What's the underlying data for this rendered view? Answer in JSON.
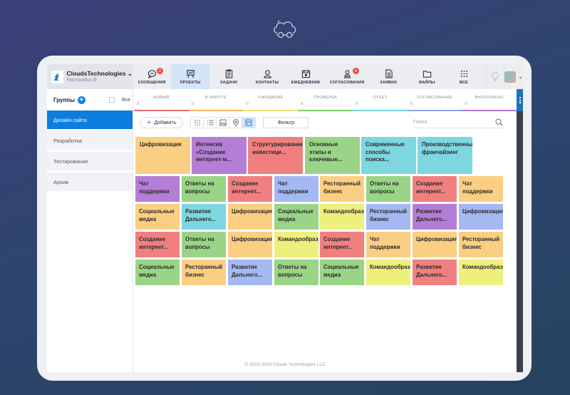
{
  "header": {
    "brand": {
      "name": "CloudsTechnologies",
      "subtitle": "Настройка"
    },
    "nav": [
      {
        "id": "messages",
        "label": "СООБЩЕНИЯ",
        "badge": "2",
        "icon": "chat-icon"
      },
      {
        "id": "projects",
        "label": "ПРОЕКТЫ",
        "active": true,
        "icon": "presentation-board-icon"
      },
      {
        "id": "tasks",
        "label": "ЗАДАЧИ",
        "icon": "clipboard-icon"
      },
      {
        "id": "contacts",
        "label": "КОНТАКТЫ",
        "icon": "user-icon"
      },
      {
        "id": "planner",
        "label": "ЕЖЕДНЕВНИК",
        "icon": "calendar-icon"
      },
      {
        "id": "approvals",
        "label": "СОГЛАСОВАНИЯ",
        "badge": "6",
        "icon": "users-icon"
      },
      {
        "id": "requests",
        "label": "ЗАЯВКИ",
        "icon": "document-icon"
      },
      {
        "id": "files",
        "label": "ФАЙЛЫ",
        "icon": "folder-icon"
      },
      {
        "id": "all",
        "label": "ВСЕ",
        "icon": "grid-icon"
      }
    ]
  },
  "sidebar": {
    "title": "Группы",
    "all_label": "Все",
    "items": [
      {
        "label": "Дизайн сайта",
        "active": true
      },
      {
        "label": "Разработка"
      },
      {
        "label": "Тестирование"
      },
      {
        "label": "Архив"
      }
    ]
  },
  "statuses": [
    {
      "name": "НОВЫЙ",
      "count": "3",
      "color": "#ea6f6f"
    },
    {
      "name": "В РАБОТЕ",
      "count": "0",
      "color": "#f2b75f"
    },
    {
      "name": "ОЖИДАНИЕ",
      "count": "0",
      "color": "#ede87a"
    },
    {
      "name": "ПРОВЕРКА",
      "count": "0",
      "color": "#7fd06e"
    },
    {
      "name": "ОТЧЕТ",
      "count": "0",
      "color": "#72d6e0"
    },
    {
      "name": "СОГЛАСОВАНИЕ",
      "count": "0",
      "color": "#8fa9ea"
    },
    {
      "name": "ВЫПОЛНЕНО",
      "count": "0",
      "color": "#b57ad8"
    }
  ],
  "toolbar": {
    "add_label": "Добавить",
    "filter_label": "Фильтр",
    "search_placeholder": "Поиск"
  },
  "colors": {
    "orange": "#fbcf83",
    "purple": "#b57ed6",
    "red": "#f08080",
    "green": "#9ad487",
    "cyan": "#7ed6e0",
    "blue": "#a4b9f1",
    "yellow": "#eef07e"
  },
  "big_cards": [
    {
      "title": "Цифровизация",
      "color": "orange"
    },
    {
      "title": "Интенсив «Создание интернет-м...",
      "color": "purple"
    },
    {
      "title": "Структурирование инвестици...",
      "color": "red"
    },
    {
      "title": "Основные этапы и ключевые...",
      "color": "green"
    },
    {
      "title": "Современные способы поиска...",
      "color": "cyan"
    },
    {
      "title": "Производственный франчайзинг",
      "color": "cyan"
    }
  ],
  "card_grid": [
    [
      {
        "title": "Чат поддержки",
        "color": "purple"
      },
      {
        "title": "Ответы на вопросы",
        "color": "green"
      },
      {
        "title": "Создание интернет...",
        "color": "red"
      },
      {
        "title": "Чат поддержки",
        "color": "blue"
      },
      {
        "title": "Ресторанный бизнес",
        "color": "orange"
      },
      {
        "title": "Ответы на вопросы",
        "color": "green"
      },
      {
        "title": "Создание интернет...",
        "color": "red"
      },
      {
        "title": "Чат поддержки",
        "color": "orange"
      }
    ],
    [
      {
        "title": "Социальные медиа",
        "color": "orange"
      },
      {
        "title": "Развитие Дальнего...",
        "color": "cyan"
      },
      {
        "title": "Цифровизация",
        "color": "orange"
      },
      {
        "title": "Социальные медиа",
        "color": "green"
      },
      {
        "title": "Командообразование",
        "color": "yellow"
      },
      {
        "title": "Ресторанный бизнес",
        "color": "blue"
      },
      {
        "title": "Развитие Дальнего...",
        "color": "purple"
      },
      {
        "title": "Цифровизация",
        "color": "blue"
      }
    ],
    [
      {
        "title": "Создание интернет...",
        "color": "red"
      },
      {
        "title": "Ответы на вопросы",
        "color": "green"
      },
      {
        "title": "Цифровизация",
        "color": "orange"
      },
      {
        "title": "Командообразование",
        "color": "yellow"
      },
      {
        "title": "Создание интернет...",
        "color": "red"
      },
      {
        "title": "Чат поддержки",
        "color": "orange"
      },
      {
        "title": "Цифровизация",
        "color": "orange"
      },
      {
        "title": "Ресторанный бизнес",
        "color": "orange"
      }
    ],
    [
      {
        "title": "Социальные медиа",
        "color": "green"
      },
      {
        "title": "Ресторанный бизнес",
        "color": "orange"
      },
      {
        "title": "Развитие Дальнего...",
        "color": "blue"
      },
      {
        "title": "Ответы на вопросы",
        "color": "green"
      },
      {
        "title": "Социальные медиа",
        "color": "green"
      },
      {
        "title": "Командообразование",
        "color": "yellow"
      },
      {
        "title": "Развитие Дальнего...",
        "color": "red"
      },
      {
        "title": "Командообразование",
        "color": "yellow"
      }
    ]
  ],
  "footer": {
    "copyright": "© 2013-2018 Clouds Technologies LLC"
  }
}
